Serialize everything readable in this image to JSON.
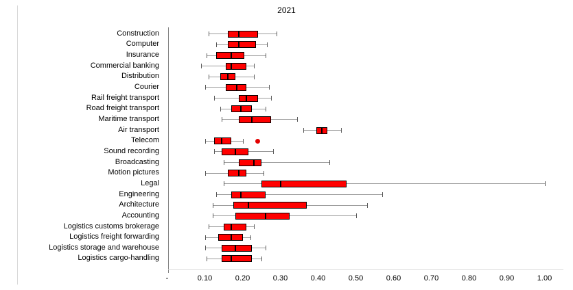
{
  "chart_data": {
    "type": "boxplot",
    "orientation": "horizontal",
    "title": "2021",
    "xlabel": "",
    "ylabel": "",
    "xlim": [
      0,
      1.0
    ],
    "grid": false,
    "box_fill_color": "#ff0000",
    "box_border_color": "#000000",
    "median_color": "#000000",
    "whisker_color": "#9a9a9a",
    "outlier_color": "#e30000",
    "x_ticks": [
      {
        "label": "-",
        "value": 0.0
      },
      {
        "label": "0.10",
        "value": 0.1
      },
      {
        "label": "0.20",
        "value": 0.2
      },
      {
        "label": "0.30",
        "value": 0.3
      },
      {
        "label": "0.40",
        "value": 0.4
      },
      {
        "label": "0.50",
        "value": 0.5
      },
      {
        "label": "0.60",
        "value": 0.6
      },
      {
        "label": "0.70",
        "value": 0.7
      },
      {
        "label": "0.80",
        "value": 0.8
      },
      {
        "label": "0.90",
        "value": 0.9
      },
      {
        "label": "1.00",
        "value": 1.0
      }
    ],
    "categories": [
      "Construction",
      "Computer",
      "Insurance",
      "Commercial banking",
      "Distribution",
      "Courier",
      "Rail freight transport",
      "Road freight transport",
      "Maritime transport",
      "Air transport",
      "Telecom",
      "Sound recording",
      "Broadcasting",
      "Motion pictures",
      "Legal",
      "Engineering",
      "Architecture",
      "Accounting",
      "Logistics customs brokerage",
      "Logistics freight forwarding",
      "Logistics storage and warehouse",
      "Logistics cargo-handling"
    ],
    "series": [
      {
        "name": "Construction",
        "min": 0.11,
        "q1": 0.16,
        "median": 0.19,
        "q3": 0.24,
        "max": 0.29,
        "outliers": []
      },
      {
        "name": "Computer",
        "min": 0.13,
        "q1": 0.16,
        "median": 0.19,
        "q3": 0.235,
        "max": 0.265,
        "outliers": []
      },
      {
        "name": "Insurance",
        "min": 0.105,
        "q1": 0.13,
        "median": 0.17,
        "q3": 0.205,
        "max": 0.26,
        "outliers": []
      },
      {
        "name": "Commercial banking",
        "min": 0.09,
        "q1": 0.155,
        "median": 0.17,
        "q3": 0.21,
        "max": 0.23,
        "outliers": []
      },
      {
        "name": "Distribution",
        "min": 0.11,
        "q1": 0.14,
        "median": 0.16,
        "q3": 0.18,
        "max": 0.23,
        "outliers": []
      },
      {
        "name": "Courier",
        "min": 0.1,
        "q1": 0.155,
        "median": 0.185,
        "q3": 0.21,
        "max": 0.27,
        "outliers": []
      },
      {
        "name": "Rail freight transport",
        "min": 0.125,
        "q1": 0.19,
        "median": 0.21,
        "q3": 0.24,
        "max": 0.275,
        "outliers": []
      },
      {
        "name": "Road freight transport",
        "min": 0.14,
        "q1": 0.17,
        "median": 0.195,
        "q3": 0.225,
        "max": 0.26,
        "outliers": []
      },
      {
        "name": "Maritime transport",
        "min": 0.145,
        "q1": 0.19,
        "median": 0.225,
        "q3": 0.275,
        "max": 0.345,
        "outliers": []
      },
      {
        "name": "Air transport",
        "min": 0.36,
        "q1": 0.395,
        "median": 0.41,
        "q3": 0.425,
        "max": 0.46,
        "outliers": []
      },
      {
        "name": "Telecom",
        "min": 0.1,
        "q1": 0.125,
        "median": 0.145,
        "q3": 0.17,
        "max": 0.2,
        "outliers": [
          0.24
        ]
      },
      {
        "name": "Sound recording",
        "min": 0.125,
        "q1": 0.145,
        "median": 0.18,
        "q3": 0.215,
        "max": 0.28,
        "outliers": []
      },
      {
        "name": "Broadcasting",
        "min": 0.15,
        "q1": 0.19,
        "median": 0.23,
        "q3": 0.25,
        "max": 0.43,
        "outliers": []
      },
      {
        "name": "Motion pictures",
        "min": 0.1,
        "q1": 0.16,
        "median": 0.19,
        "q3": 0.21,
        "max": 0.255,
        "outliers": []
      },
      {
        "name": "Legal",
        "min": 0.15,
        "q1": 0.25,
        "median": 0.3,
        "q3": 0.475,
        "max": 1.0,
        "outliers": []
      },
      {
        "name": "Engineering",
        "min": 0.13,
        "q1": 0.17,
        "median": 0.195,
        "q3": 0.26,
        "max": 0.57,
        "outliers": []
      },
      {
        "name": "Architecture",
        "min": 0.12,
        "q1": 0.175,
        "median": 0.215,
        "q3": 0.37,
        "max": 0.53,
        "outliers": []
      },
      {
        "name": "Accounting",
        "min": 0.12,
        "q1": 0.18,
        "median": 0.26,
        "q3": 0.325,
        "max": 0.5,
        "outliers": []
      },
      {
        "name": "Logistics customs brokerage",
        "min": 0.11,
        "q1": 0.15,
        "median": 0.17,
        "q3": 0.21,
        "max": 0.23,
        "outliers": []
      },
      {
        "name": "Logistics freight forwarding",
        "min": 0.1,
        "q1": 0.135,
        "median": 0.17,
        "q3": 0.2,
        "max": 0.22,
        "outliers": []
      },
      {
        "name": "Logistics storage and warehouse",
        "min": 0.1,
        "q1": 0.145,
        "median": 0.18,
        "q3": 0.225,
        "max": 0.26,
        "outliers": []
      },
      {
        "name": "Logistics cargo-handling",
        "min": 0.105,
        "q1": 0.145,
        "median": 0.17,
        "q3": 0.225,
        "max": 0.25,
        "outliers": []
      }
    ]
  }
}
